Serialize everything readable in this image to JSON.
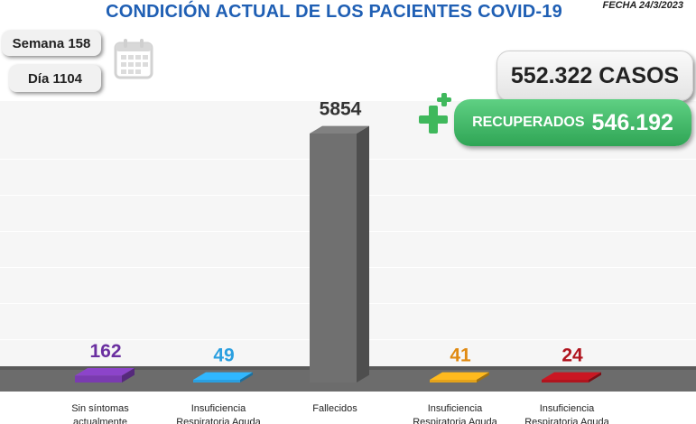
{
  "header": {
    "title": "CONDICIÓN ACTUAL DE LOS PACIENTES COVID-19",
    "fecha": "FECHA 24/3/2023"
  },
  "info": {
    "semana": "Semana 158",
    "dia": "Día 1104",
    "calendar_icon": "calendar-icon"
  },
  "summary": {
    "casos": "552.322 CASOS",
    "recuperados_label": "RECUPERADOS",
    "recuperados_value": "546.192",
    "plus_icon": "plus-icon"
  },
  "chart_data": {
    "type": "bar",
    "categories": [
      "Sin síntomas\nactualmente",
      "Insuficiencia\nRespiratoria Aguda",
      "Fallecidos",
      "Insuficiencia\nRespiratoria Aguda",
      "Insuficiencia\nRespiratoria Aguda"
    ],
    "values": [
      162,
      49,
      5854,
      41,
      24
    ],
    "value_labels": [
      "162",
      "49",
      "5854",
      "41",
      "24"
    ],
    "colors": [
      "#7a3bb0",
      "#2a9fe0",
      "#707070",
      "#e3a21a",
      "#b0141e"
    ],
    "label_colors": [
      "#6a2fa0",
      "#2a9fe0",
      "#333333",
      "#e08a12",
      "#b0141e"
    ],
    "ylim": [
      0,
      5854
    ],
    "grid": true,
    "style": "3d"
  }
}
